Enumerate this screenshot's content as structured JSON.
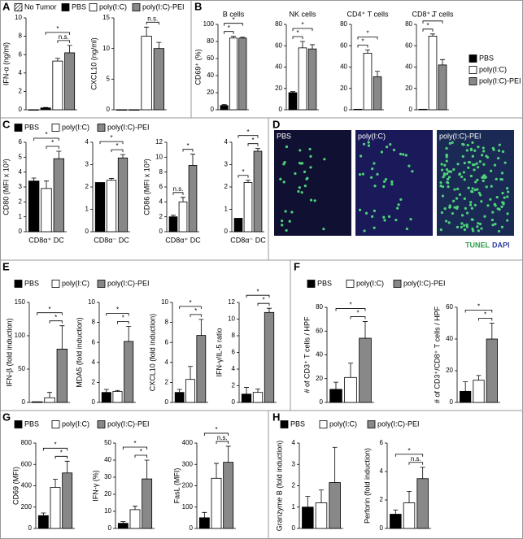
{
  "panels": [
    {
      "letter": "A",
      "legend": [
        {
          "name": "No Tumor",
          "color": "hatch"
        },
        {
          "name": "PBS",
          "color": "#000000"
        },
        {
          "name": "poly(I:C)",
          "color": "#ffffff"
        },
        {
          "name": "poly(I:C)-PEI",
          "color": "#888888"
        }
      ]
    },
    {
      "letter": "B",
      "legend": [
        {
          "name": "PBS",
          "color": "#000000"
        },
        {
          "name": "poly(I:C)",
          "color": "#ffffff"
        },
        {
          "name": "poly(I:C)-PEI",
          "color": "#888888"
        }
      ]
    },
    {
      "letter": "C",
      "legend": [
        {
          "name": "PBS",
          "color": "#000000"
        },
        {
          "name": "poly(I:C)",
          "color": "#ffffff"
        },
        {
          "name": "poly(I:C)-PEI",
          "color": "#888888"
        }
      ]
    },
    {
      "letter": "D",
      "images": [
        "PBS",
        "poly(I:C)",
        "poly(I:C)-PEI"
      ],
      "stain1": "TUNEL",
      "stain2": "DAPI"
    },
    {
      "letter": "E",
      "legend": [
        {
          "name": "PBS",
          "color": "#000000"
        },
        {
          "name": "poly(I:C)",
          "color": "#ffffff"
        },
        {
          "name": "poly(I:C)-PEI",
          "color": "#888888"
        }
      ]
    },
    {
      "letter": "F",
      "legend": [
        {
          "name": "PBS",
          "color": "#000000"
        },
        {
          "name": "poly(I:C)",
          "color": "#ffffff"
        },
        {
          "name": "poly(I:C)-PEI",
          "color": "#888888"
        }
      ]
    },
    {
      "letter": "G",
      "legend": [
        {
          "name": "PBS",
          "color": "#000000"
        },
        {
          "name": "poly(I:C)",
          "color": "#ffffff"
        },
        {
          "name": "poly(I:C)-PEI",
          "color": "#888888"
        }
      ]
    },
    {
      "letter": "H",
      "legend": [
        {
          "name": "PBS",
          "color": "#000000"
        },
        {
          "name": "poly(I:C)",
          "color": "#ffffff"
        },
        {
          "name": "poly(I:C)-PEI",
          "color": "#888888"
        }
      ]
    }
  ],
  "chart_data": [
    {
      "type": "bar",
      "ylabel": "IFN-α (ng/ml)",
      "colors": [
        "hatch",
        "#000000",
        "#ffffff",
        "#888888"
      ],
      "values": [
        0,
        0.2,
        5.3,
        6.2
      ],
      "errors": [
        0,
        0.05,
        0.3,
        0.8
      ],
      "ylim": [
        0,
        10
      ],
      "yticks": [
        0,
        2,
        4,
        6,
        8,
        10
      ],
      "significance": [
        {
          "from": 2,
          "to": 3,
          "label": "n.s."
        },
        {
          "from": 1,
          "to": 3,
          "label": "*"
        }
      ]
    },
    {
      "type": "bar",
      "ylabel": "CXCL10 (ng/ml)",
      "colors": [
        "hatch",
        "#000000",
        "#ffffff",
        "#888888"
      ],
      "values": [
        0,
        0,
        12,
        10
      ],
      "errors": [
        0,
        0,
        1.5,
        1
      ],
      "ylim": [
        0,
        15
      ],
      "yticks": [
        0,
        5,
        10,
        15
      ],
      "significance": [
        {
          "from": 2,
          "to": 3,
          "label": "n.s."
        }
      ]
    },
    {
      "type": "bar",
      "title": "B cells",
      "ylabel": "CD69⁺ (%)",
      "colors": [
        "#000000",
        "#ffffff",
        "#888888"
      ],
      "values": [
        5,
        84,
        84
      ],
      "errors": [
        1,
        2,
        1
      ],
      "ylim": [
        0,
        100
      ],
      "yticks": [
        0,
        20,
        40,
        60,
        80,
        100
      ],
      "significance": [
        {
          "from": 0,
          "to": 1,
          "label": "*"
        },
        {
          "from": 0,
          "to": 2,
          "label": "*"
        }
      ]
    },
    {
      "type": "bar",
      "title": "NK cells",
      "colors": [
        "#000000",
        "#ffffff",
        "#888888"
      ],
      "values": [
        16,
        58,
        57
      ],
      "errors": [
        1,
        6,
        4
      ],
      "ylim": [
        0,
        80
      ],
      "yticks": [
        0,
        20,
        40,
        60,
        80
      ],
      "significance": [
        {
          "from": 0,
          "to": 1,
          "label": "*"
        },
        {
          "from": 0,
          "to": 2,
          "label": "*"
        }
      ]
    },
    {
      "type": "bar",
      "title": "CD4⁺ T cells",
      "colors": [
        "#000000",
        "#ffffff",
        "#888888"
      ],
      "values": [
        0.5,
        53,
        31
      ],
      "errors": [
        0,
        3,
        5
      ],
      "ylim": [
        0,
        80
      ],
      "yticks": [
        0,
        20,
        40,
        60,
        80
      ],
      "significance": [
        {
          "from": 0,
          "to": 1,
          "label": "*"
        },
        {
          "from": 0,
          "to": 2,
          "label": "*"
        }
      ]
    },
    {
      "type": "bar",
      "title": "CD8⁺ T cells",
      "colors": [
        "#000000",
        "#ffffff",
        "#888888"
      ],
      "values": [
        0.5,
        69,
        42
      ],
      "errors": [
        0,
        2,
        5
      ],
      "ylim": [
        0,
        80
      ],
      "yticks": [
        0,
        20,
        40,
        60,
        80
      ],
      "significance": [
        {
          "from": 0,
          "to": 1,
          "label": "*"
        },
        {
          "from": 0,
          "to": 2,
          "label": "*"
        }
      ]
    },
    {
      "type": "bar",
      "ylabel": "CD80 (MFI x 10³)",
      "xlabel": "CD8α⁺ DC",
      "colors": [
        "#000000",
        "#ffffff",
        "#888888"
      ],
      "values": [
        3.4,
        2.9,
        4.9
      ],
      "errors": [
        0.2,
        0.5,
        0.5
      ],
      "ylim": [
        0,
        6
      ],
      "yticks": [
        0,
        1,
        2,
        3,
        4,
        5,
        6
      ],
      "significance": [
        {
          "from": 1,
          "to": 2,
          "label": "*"
        },
        {
          "from": 0,
          "to": 2,
          "label": "*"
        }
      ]
    },
    {
      "type": "bar",
      "xlabel": "CD8α⁻ DC",
      "colors": [
        "#000000",
        "#ffffff",
        "#888888"
      ],
      "values": [
        2.2,
        2.3,
        3.3
      ],
      "errors": [
        0,
        0.08,
        0.15
      ],
      "ylim": [
        0,
        4
      ],
      "yticks": [
        0,
        1,
        2,
        3,
        4
      ],
      "significance": [
        {
          "from": 1,
          "to": 2,
          "label": "*"
        },
        {
          "from": 0,
          "to": 2,
          "label": "*"
        }
      ]
    },
    {
      "type": "bar",
      "ylabel": "CD86 (MFI x 10³)",
      "xlabel": "CD8α⁺ DC",
      "colors": [
        "#000000",
        "#ffffff",
        "#888888"
      ],
      "values": [
        2,
        4,
        8.9
      ],
      "errors": [
        0.2,
        0.6,
        1.5
      ],
      "ylim": [
        0,
        12
      ],
      "yticks": [
        0,
        2,
        4,
        6,
        8,
        10,
        12
      ],
      "significance": [
        {
          "from": 0,
          "to": 1,
          "label": "n.s."
        },
        {
          "from": 1,
          "to": 2,
          "label": "*"
        }
      ]
    },
    {
      "type": "bar",
      "xlabel": "CD8α⁻ DC",
      "colors": [
        "#000000",
        "#ffffff",
        "#888888"
      ],
      "values": [
        0.6,
        2.2,
        3.6
      ],
      "errors": [
        0,
        0.1,
        0.12
      ],
      "ylim": [
        0,
        4
      ],
      "yticks": [
        0,
        1,
        2,
        3,
        4
      ],
      "significance": [
        {
          "from": 0,
          "to": 1,
          "label": "*"
        },
        {
          "from": 1,
          "to": 2,
          "label": "*"
        },
        {
          "from": 0,
          "to": 2,
          "label": "*"
        }
      ]
    },
    {
      "type": "bar",
      "ylabel": "IFN-β (fold induction)",
      "colors": [
        "#000000",
        "#ffffff",
        "#888888"
      ],
      "values": [
        1,
        7,
        80
      ],
      "errors": [
        0,
        8,
        35
      ],
      "ylim": [
        0,
        150
      ],
      "yticks": [
        0,
        50,
        100,
        150
      ],
      "significance": [
        {
          "from": 1,
          "to": 2,
          "label": "*"
        },
        {
          "from": 0,
          "to": 2,
          "label": "*"
        }
      ]
    },
    {
      "type": "bar",
      "ylabel": "MDA5 (fold induction)",
      "colors": [
        "#000000",
        "#ffffff",
        "#888888"
      ],
      "values": [
        1,
        1.1,
        6.1
      ],
      "errors": [
        0.3,
        0.1,
        1.5
      ],
      "ylim": [
        0,
        10
      ],
      "yticks": [
        0,
        2,
        4,
        6,
        8,
        10
      ],
      "significance": [
        {
          "from": 1,
          "to": 2,
          "label": "*"
        },
        {
          "from": 0,
          "to": 2,
          "label": "*"
        }
      ]
    },
    {
      "type": "bar",
      "ylabel": "CXCL10 (fold induction)",
      "colors": [
        "#000000",
        "#ffffff",
        "#888888"
      ],
      "values": [
        1,
        2.3,
        6.7
      ],
      "errors": [
        0.3,
        1.3,
        1.6
      ],
      "ylim": [
        0,
        10
      ],
      "yticks": [
        0,
        2,
        4,
        6,
        8,
        10
      ],
      "significance": [
        {
          "from": 1,
          "to": 2,
          "label": "*"
        },
        {
          "from": 0,
          "to": 2,
          "label": "*"
        }
      ]
    },
    {
      "type": "bar",
      "ylabel": "IFN-γ/IL-5 ratio",
      "colors": [
        "#000000",
        "#ffffff",
        "#888888"
      ],
      "values": [
        1,
        1.2,
        10.8
      ],
      "errors": [
        0.8,
        0.4,
        0.5
      ],
      "ylim": [
        0,
        12
      ],
      "yticks": [
        0,
        2,
        4,
        6,
        8,
        10,
        12
      ],
      "significance": [
        {
          "from": 1,
          "to": 2,
          "label": "*"
        },
        {
          "from": 0,
          "to": 2,
          "label": "*"
        }
      ]
    },
    {
      "type": "bar",
      "ylabel": "# of CD3⁺ T cells / HPF",
      "colors": [
        "#000000",
        "#ffffff",
        "#888888"
      ],
      "values": [
        11,
        21,
        54
      ],
      "errors": [
        6,
        12,
        14
      ],
      "ylim": [
        0,
        80
      ],
      "yticks": [
        0,
        20,
        40,
        60,
        80
      ],
      "significance": [
        {
          "from": 1,
          "to": 2,
          "label": "*"
        },
        {
          "from": 0,
          "to": 2,
          "label": "*"
        }
      ]
    },
    {
      "type": "bar",
      "ylabel": "# of CD3⁺/CD8⁺ T cells / HPF",
      "colors": [
        "#000000",
        "#ffffff",
        "#888888"
      ],
      "values": [
        7,
        14,
        40
      ],
      "errors": [
        6,
        3,
        10
      ],
      "ylim": [
        0,
        60
      ],
      "yticks": [
        0,
        20,
        40,
        60
      ],
      "significance": [
        {
          "from": 1,
          "to": 2,
          "label": "*"
        },
        {
          "from": 0,
          "to": 2,
          "label": "*"
        }
      ]
    },
    {
      "type": "bar",
      "ylabel": "CD69 (MFI)",
      "colors": [
        "#000000",
        "#ffffff",
        "#888888"
      ],
      "values": [
        120,
        385,
        520
      ],
      "errors": [
        25,
        75,
        110
      ],
      "ylim": [
        0,
        800
      ],
      "yticks": [
        0,
        200,
        400,
        600,
        800
      ],
      "significance": [
        {
          "from": 1,
          "to": 2,
          "label": "*"
        },
        {
          "from": 0,
          "to": 2,
          "label": "*"
        }
      ]
    },
    {
      "type": "bar",
      "ylabel": "IFN-γ (%)",
      "colors": [
        "#000000",
        "#ffffff",
        "#888888"
      ],
      "values": [
        3,
        11,
        29
      ],
      "errors": [
        1,
        2,
        11
      ],
      "ylim": [
        0,
        50
      ],
      "yticks": [
        0,
        10,
        20,
        30,
        40,
        50
      ],
      "significance": [
        {
          "from": 1,
          "to": 2,
          "label": "*"
        },
        {
          "from": 0,
          "to": 2,
          "label": "*"
        }
      ]
    },
    {
      "type": "bar",
      "ylabel": "FasL (MFI)",
      "colors": [
        "#000000",
        "#ffffff",
        "#888888"
      ],
      "values": [
        50,
        235,
        310
      ],
      "errors": [
        25,
        70,
        75
      ],
      "ylim": [
        0,
        400
      ],
      "yticks": [
        0,
        100,
        200,
        300,
        400
      ],
      "significance": [
        {
          "from": 1,
          "to": 2,
          "label": "n.s."
        },
        {
          "from": 0,
          "to": 2,
          "label": "*"
        }
      ]
    },
    {
      "type": "bar",
      "ylabel": "Granzyme B (fold induction)",
      "colors": [
        "#000000",
        "#ffffff",
        "#888888"
      ],
      "values": [
        1,
        1.2,
        2.15
      ],
      "errors": [
        0.5,
        0.6,
        1.65
      ],
      "ylim": [
        0,
        4
      ],
      "yticks": [
        0,
        1,
        2,
        3,
        4
      ],
      "significance": []
    },
    {
      "type": "bar",
      "ylabel": "Perforin (fold induction)",
      "colors": [
        "#000000",
        "#ffffff",
        "#888888"
      ],
      "values": [
        1,
        1.8,
        3.5
      ],
      "errors": [
        0.3,
        0.8,
        0.8
      ],
      "ylim": [
        0,
        6
      ],
      "yticks": [
        0,
        2,
        4,
        6
      ],
      "significance": [
        {
          "from": 1,
          "to": 2,
          "label": "n.s."
        },
        {
          "from": 0,
          "to": 2,
          "label": "*"
        }
      ]
    }
  ]
}
